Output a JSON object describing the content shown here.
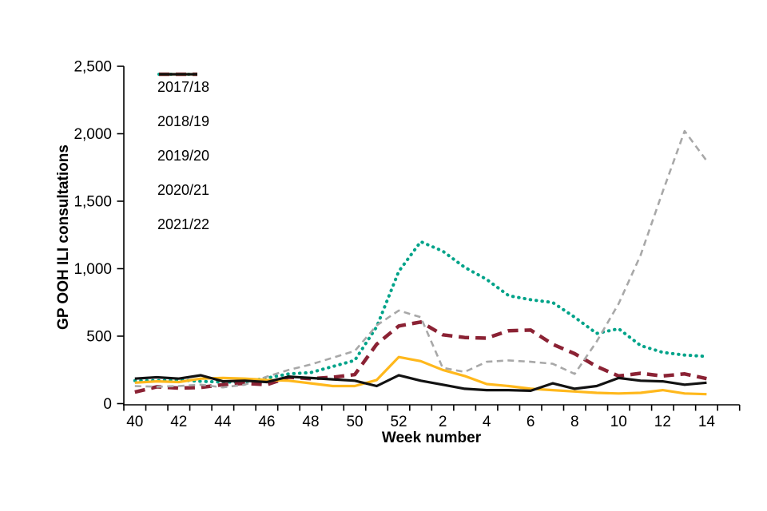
{
  "chart_data": {
    "type": "line",
    "title": "",
    "xlabel": "Week number",
    "ylabel": "GP OOH ILI consultations",
    "ylim": [
      0,
      2500
    ],
    "grid": false,
    "legend_position": "top-left-inside",
    "axis_color": "#000000",
    "y_ticks": [
      0,
      500,
      1000,
      1500,
      2000,
      2500
    ],
    "y_tick_labels": [
      "0",
      "500",
      "1,000",
      "1,500",
      "2,000",
      "2,500"
    ],
    "x_categories": [
      "40",
      "41",
      "42",
      "43",
      "44",
      "45",
      "46",
      "47",
      "48",
      "49",
      "50",
      "51",
      "52",
      "1",
      "2",
      "3",
      "4",
      "5",
      "6",
      "7",
      "8",
      "9",
      "10",
      "11",
      "12",
      "13",
      "14"
    ],
    "x_labels_every": 2,
    "x_tick_labels_shown": [
      "40",
      "42",
      "44",
      "46",
      "48",
      "50",
      "52",
      "2",
      "4",
      "6",
      "8",
      "10",
      "12",
      "14"
    ],
    "series": [
      {
        "name": "2017/18",
        "color": "#00A389",
        "style": "dotted",
        "values": [
          170,
          170,
          175,
          165,
          160,
          160,
          190,
          220,
          230,
          275,
          320,
          570,
          980,
          1200,
          1130,
          1010,
          920,
          800,
          770,
          750,
          640,
          520,
          555,
          430,
          380,
          360,
          350
        ]
      },
      {
        "name": "2018/19",
        "color": "#8B2234",
        "style": "dashed-long",
        "values": [
          85,
          125,
          115,
          120,
          140,
          150,
          140,
          195,
          185,
          195,
          215,
          440,
          575,
          605,
          510,
          490,
          485,
          540,
          545,
          440,
          370,
          275,
          205,
          225,
          205,
          220,
          185
        ]
      },
      {
        "name": "2019/20",
        "color": "#A8A8A8",
        "style": "dashed",
        "values": [
          130,
          125,
          130,
          140,
          120,
          140,
          200,
          250,
          290,
          340,
          390,
          580,
          690,
          640,
          265,
          235,
          310,
          320,
          310,
          295,
          220,
          460,
          740,
          1100,
          1570,
          2020,
          1800
        ]
      },
      {
        "name": "2020/21",
        "color": "#FFB81C",
        "style": "solid",
        "values": [
          155,
          165,
          160,
          185,
          190,
          185,
          175,
          170,
          150,
          130,
          130,
          175,
          345,
          315,
          250,
          205,
          145,
          130,
          110,
          100,
          90,
          80,
          75,
          80,
          100,
          75,
          70
        ]
      },
      {
        "name": "2021/22",
        "color": "#121212",
        "style": "solid",
        "values": [
          185,
          195,
          185,
          210,
          165,
          170,
          160,
          200,
          190,
          180,
          170,
          130,
          210,
          170,
          140,
          110,
          100,
          100,
          95,
          150,
          110,
          130,
          190,
          170,
          165,
          140,
          155
        ]
      }
    ]
  }
}
